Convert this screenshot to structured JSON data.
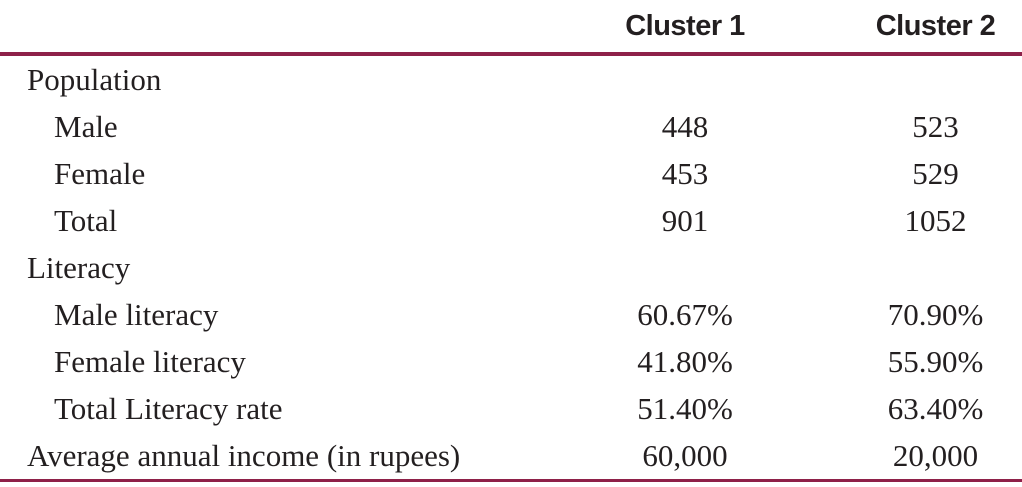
{
  "table": {
    "columns": {
      "col1": "Cluster 1",
      "col2": "Cluster 2"
    },
    "rows": [
      {
        "label": "Population",
        "c1": "",
        "c2": ""
      },
      {
        "label": "Male",
        "c1": "448",
        "c2": "523"
      },
      {
        "label": "Female",
        "c1": "453",
        "c2": "529"
      },
      {
        "label": "Total",
        "c1": "901",
        "c2": "1052"
      },
      {
        "label": "Literacy",
        "c1": "",
        "c2": ""
      },
      {
        "label": "Male literacy",
        "c1": "60.67%",
        "c2": "70.90%"
      },
      {
        "label": "Female literacy",
        "c1": "41.80%",
        "c2": "55.90%"
      },
      {
        "label": "Total Literacy rate",
        "c1": "51.40%",
        "c2": "63.40%"
      },
      {
        "label": "Average annual income (in rupees)",
        "c1": "60,000",
        "c2": "20,000"
      }
    ]
  },
  "colors": {
    "rule": "#8e2149",
    "text": "#231f20"
  },
  "chart_data": {
    "type": "table",
    "columns": [
      "",
      "Cluster 1",
      "Cluster 2"
    ],
    "rows": [
      [
        "Population",
        "",
        ""
      ],
      [
        "Male",
        "448",
        "523"
      ],
      [
        "Female",
        "453",
        "529"
      ],
      [
        "Total",
        "901",
        "1052"
      ],
      [
        "Literacy",
        "",
        ""
      ],
      [
        "Male literacy",
        "60.67%",
        "70.90%"
      ],
      [
        "Female literacy",
        "41.80%",
        "55.90%"
      ],
      [
        "Total Literacy rate",
        "51.40%",
        "63.40%"
      ],
      [
        "Average annual income (in rupees)",
        "60,000",
        "20,000"
      ]
    ],
    "population": {
      "cluster1": {
        "male": 448,
        "female": 453,
        "total": 901
      },
      "cluster2": {
        "male": 523,
        "female": 529,
        "total": 1052
      }
    },
    "literacy_percent": {
      "cluster1": {
        "male": 60.67,
        "female": 41.8,
        "total": 51.4
      },
      "cluster2": {
        "male": 70.9,
        "female": 55.9,
        "total": 63.4
      }
    },
    "average_annual_income_rupees": {
      "cluster1": 60000,
      "cluster2": 20000
    }
  }
}
